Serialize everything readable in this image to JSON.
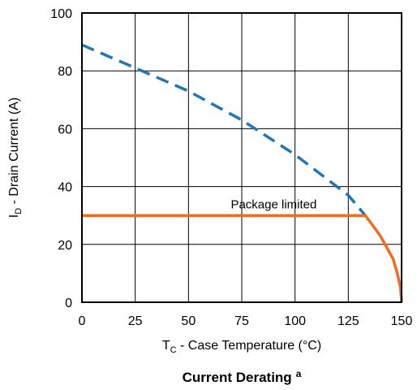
{
  "chart_data": {
    "type": "line",
    "title": "Current Derating",
    "title_superscript": "a",
    "xlabel": {
      "main": "T",
      "sub": "C",
      "rest": " - Case Temperature (°C)"
    },
    "ylabel": {
      "main": "I",
      "sub": "D",
      "rest": " - Drain Current (A)"
    },
    "xlim": [
      0,
      150
    ],
    "ylim": [
      0,
      100
    ],
    "x_ticks": [
      0,
      25,
      50,
      75,
      100,
      125,
      150
    ],
    "y_ticks": [
      0,
      20,
      40,
      60,
      80,
      100
    ],
    "grid": true,
    "annotations": [
      {
        "text": "Package limited",
        "x": 90,
        "y": 33
      }
    ],
    "series": [
      {
        "style": "dashed",
        "color": "#1f77b4",
        "x": [
          0,
          25,
          50,
          75,
          100,
          125,
          133
        ],
        "y": [
          89,
          81,
          73,
          63,
          51,
          37,
          30
        ]
      },
      {
        "style": "solid",
        "color": "#f26b21",
        "x": [
          0,
          133,
          137,
          140,
          143,
          146,
          148,
          149.5,
          150
        ],
        "y": [
          30,
          30,
          26,
          23,
          19,
          15,
          10,
          5,
          0
        ]
      }
    ]
  }
}
